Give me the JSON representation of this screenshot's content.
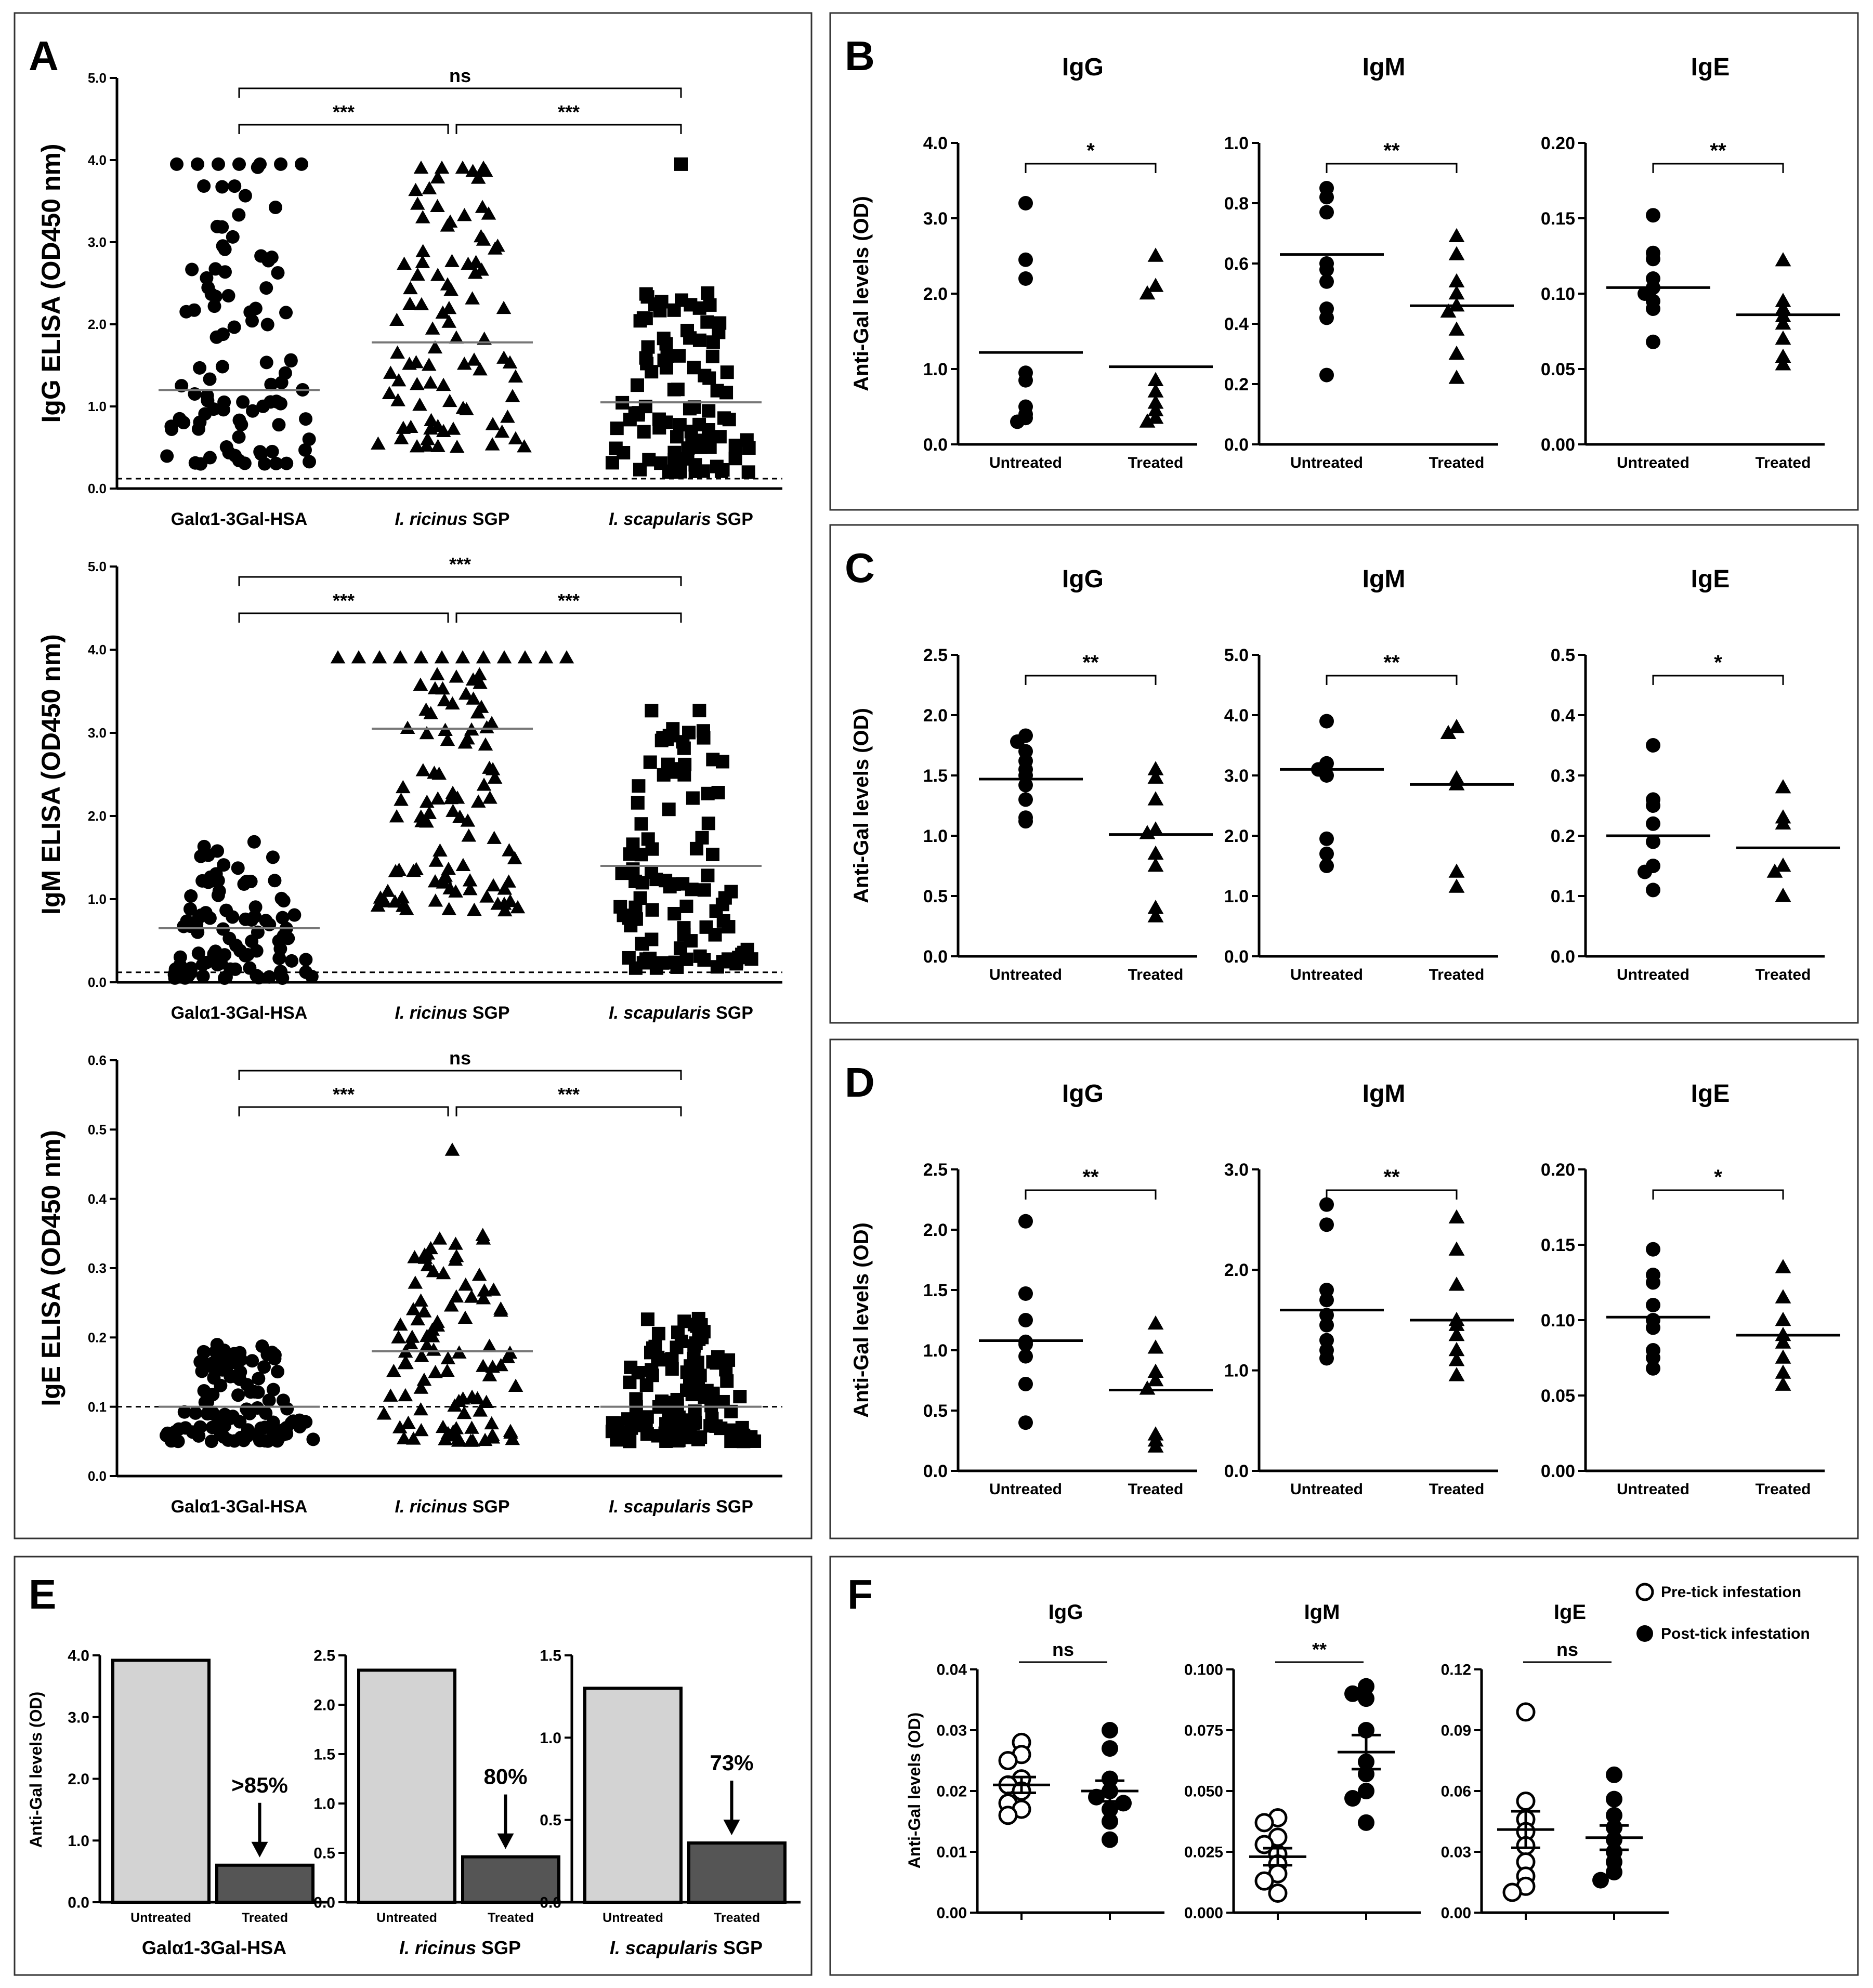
{
  "chart_data": {
    "A": {
      "letter": "A",
      "categories": [
        "Galα1-3Gal-HSA",
        "I. ricinus SGP",
        "I. scapularis SGP"
      ],
      "plots": [
        {
          "ylabel": "IgG ELISA (OD450 nm)",
          "yticks": [
            "0.0",
            "1.0",
            "2.0",
            "3.0",
            "4.0",
            "5.0"
          ],
          "ylim": [
            0,
            5
          ],
          "means": [
            1.2,
            1.78,
            1.05
          ],
          "cutoff": 0.12,
          "comparisons": [
            {
              "groups": [
                0,
                2
              ],
              "label": "ns"
            },
            {
              "groups": [
                0,
                1
              ],
              "label": "***"
            },
            {
              "groups": [
                1,
                2
              ],
              "label": "***"
            }
          ],
          "ranges": [
            [
              0.3,
              3.95,
              90
            ],
            [
              0.5,
              3.9,
              85
            ],
            [
              0.2,
              2.45,
              95
            ]
          ],
          "extras": [
            [
              3.95,
              3.95,
              3.95,
              3.95,
              3.95,
              3.95,
              3.95
            ],
            [
              3.9,
              3.9,
              3.9,
              3.9
            ],
            [
              3.95
            ]
          ]
        },
        {
          "ylabel": "IgM ELISA (OD450 nm)",
          "yticks": [
            "0.0",
            "1.0",
            "2.0",
            "3.0",
            "4.0",
            "5.0"
          ],
          "ylim": [
            0,
            5
          ],
          "means": [
            0.65,
            3.05,
            1.4
          ],
          "cutoff": 0.12,
          "comparisons": [
            {
              "groups": [
                0,
                2
              ],
              "label": "***"
            },
            {
              "groups": [
                0,
                1
              ],
              "label": "***"
            },
            {
              "groups": [
                1,
                2
              ],
              "label": "***"
            }
          ],
          "ranges": [
            [
              0.05,
              1.7,
              95
            ],
            [
              0.85,
              3.9,
              90
            ],
            [
              0.15,
              3.3,
              100
            ]
          ],
          "extras": [
            [],
            [
              3.9,
              3.9,
              3.9,
              3.9,
              3.9,
              3.9,
              3.9,
              3.9,
              3.9,
              3.9,
              3.9,
              3.9
            ],
            []
          ]
        },
        {
          "ylabel": "IgE ELISA (OD450 nm)",
          "yticks": [
            "0.0",
            "0.1",
            "0.2",
            "0.3",
            "0.4",
            "0.5",
            "0.6"
          ],
          "ylim": [
            0,
            0.6
          ],
          "means": [
            0.1,
            0.18,
            0.1
          ],
          "cutoff": 0.1,
          "comparisons": [
            {
              "groups": [
                0,
                2
              ],
              "label": "ns"
            },
            {
              "groups": [
                0,
                1
              ],
              "label": "***"
            },
            {
              "groups": [
                1,
                2
              ],
              "label": "***"
            }
          ],
          "ranges": [
            [
              0.05,
              0.19,
              110
            ],
            [
              0.05,
              0.35,
              95
            ],
            [
              0.05,
              0.23,
              110
            ]
          ],
          "extras": [
            [],
            [
              0.47
            ],
            []
          ]
        }
      ]
    },
    "rows": [
      {
        "letter": "B",
        "ylabel": "Anti-Gal levels (OD)",
        "groups": [
          "Untreated",
          "Treated"
        ],
        "subplots": [
          {
            "title": "IgG",
            "yticks": [
              "0.0",
              "1.0",
              "2.0",
              "3.0",
              "4.0"
            ],
            "ylim": [
              0,
              4
            ],
            "sig": "*",
            "untreated": [
              3.2,
              2.45,
              2.2,
              0.95,
              0.85,
              0.5,
              0.4,
              0.35,
              0.3
            ],
            "treated": [
              2.5,
              2.1,
              2.0,
              0.85,
              0.7,
              0.55,
              0.45,
              0.35,
              0.3
            ],
            "means": [
              1.22,
              1.03
            ]
          },
          {
            "title": "IgM",
            "yticks": [
              "0.0",
              "0.2",
              "0.4",
              "0.6",
              "0.8",
              "1.0"
            ],
            "ylim": [
              0,
              1
            ],
            "sig": "**",
            "untreated": [
              0.85,
              0.82,
              0.77,
              0.6,
              0.58,
              0.54,
              0.45,
              0.42,
              0.23
            ],
            "treated": [
              0.69,
              0.63,
              0.54,
              0.5,
              0.46,
              0.44,
              0.38,
              0.3,
              0.22
            ],
            "means": [
              0.63,
              0.46
            ]
          },
          {
            "title": "IgE",
            "yticks": [
              "0.00",
              "0.05",
              "0.10",
              "0.15",
              "0.20"
            ],
            "ylim": [
              0,
              0.2
            ],
            "sig": "**",
            "untreated": [
              0.152,
              0.127,
              0.123,
              0.11,
              0.104,
              0.1,
              0.095,
              0.09,
              0.068
            ],
            "treated": [
              0.122,
              0.095,
              0.09,
              0.085,
              0.08,
              0.07,
              0.058,
              0.053
            ],
            "means": [
              0.104,
              0.086
            ]
          }
        ]
      },
      {
        "letter": "C",
        "ylabel": "Anti-Gal levels (OD)",
        "groups": [
          "Untreated",
          "Treated"
        ],
        "subplots": [
          {
            "title": "IgG",
            "yticks": [
              "0.0",
              "0.5",
              "1.0",
              "1.5",
              "2.0",
              "2.5"
            ],
            "ylim": [
              0,
              2.5
            ],
            "sig": "**",
            "untreated": [
              1.83,
              1.78,
              1.7,
              1.62,
              1.55,
              1.5,
              1.42,
              1.3,
              1.15,
              1.12
            ],
            "treated": [
              1.55,
              1.48,
              1.3,
              1.05,
              1.02,
              0.85,
              0.75,
              0.4,
              0.33
            ],
            "means": [
              1.47,
              1.01
            ]
          },
          {
            "title": "IgM",
            "yticks": [
              "0.0",
              "1.0",
              "2.0",
              "3.0",
              "4.0",
              "5.0"
            ],
            "ylim": [
              0,
              5
            ],
            "sig": "**",
            "untreated": [
              3.9,
              3.2,
              3.1,
              3.0,
              1.95,
              1.7,
              1.5
            ],
            "treated": [
              3.8,
              3.7,
              2.95,
              2.85,
              1.4,
              1.15
            ],
            "means": [
              3.1,
              2.85
            ]
          },
          {
            "title": "IgE",
            "yticks": [
              "0.0",
              "0.1",
              "0.2",
              "0.3",
              "0.4",
              "0.5"
            ],
            "ylim": [
              0,
              0.5
            ],
            "sig": "*",
            "untreated": [
              0.35,
              0.26,
              0.25,
              0.22,
              0.19,
              0.15,
              0.14,
              0.11
            ],
            "treated": [
              0.28,
              0.23,
              0.22,
              0.15,
              0.14,
              0.1
            ],
            "means": [
              0.2,
              0.18
            ]
          }
        ]
      },
      {
        "letter": "D",
        "ylabel": "Anti-Gal levels (OD)",
        "groups": [
          "Untreated",
          "Treated"
        ],
        "subplots": [
          {
            "title": "IgG",
            "yticks": [
              "0.0",
              "0.5",
              "1.0",
              "1.5",
              "2.0",
              "2.5"
            ],
            "ylim": [
              0,
              2.5
            ],
            "sig": "**",
            "untreated": [
              2.07,
              1.47,
              1.25,
              1.07,
              1.05,
              0.95,
              0.72,
              0.4
            ],
            "treated": [
              1.22,
              1.02,
              0.82,
              0.75,
              0.68,
              0.3,
              0.25,
              0.2
            ],
            "means": [
              1.08,
              0.67
            ]
          },
          {
            "title": "IgM",
            "yticks": [
              "0.0",
              "1.0",
              "2.0",
              "3.0"
            ],
            "ylim": [
              0,
              3
            ],
            "sig": "**",
            "untreated": [
              2.65,
              2.45,
              1.8,
              1.7,
              1.55,
              1.45,
              1.3,
              1.2,
              1.12
            ],
            "treated": [
              2.52,
              2.2,
              1.85,
              1.5,
              1.45,
              1.35,
              1.2,
              1.1,
              0.95
            ],
            "means": [
              1.6,
              1.5
            ]
          },
          {
            "title": "IgE",
            "yticks": [
              "0.00",
              "0.05",
              "0.10",
              "0.15",
              "0.20"
            ],
            "ylim": [
              0,
              0.2
            ],
            "sig": "*",
            "untreated": [
              0.147,
              0.13,
              0.125,
              0.11,
              0.1,
              0.095,
              0.08,
              0.075,
              0.068
            ],
            "treated": [
              0.135,
              0.115,
              0.1,
              0.09,
              0.085,
              0.075,
              0.065,
              0.057
            ],
            "means": [
              0.102,
              0.09
            ]
          }
        ]
      }
    ],
    "E": {
      "letter": "E",
      "ylabel": "Anti-Gal levels (OD)",
      "groups": [
        "Untreated",
        "Treated"
      ],
      "subplots": [
        {
          "title": "Galα1-3Gal-HSA",
          "yticks": [
            "0.0",
            "1.0",
            "2.0",
            "3.0",
            "4.0"
          ],
          "ylim": [
            0,
            4
          ],
          "values": [
            3.92,
            0.6
          ],
          "reduction": ">85%"
        },
        {
          "title": "I. ricinus SGP",
          "yticks": [
            "0.0",
            "0.5",
            "1.0",
            "1.5",
            "2.0",
            "2.5"
          ],
          "ylim": [
            0,
            2.5
          ],
          "values": [
            2.35,
            0.46
          ],
          "reduction": "80%"
        },
        {
          "title": "I. scapularis SGP",
          "yticks": [
            "0.0",
            "0.5",
            "1.0",
            "1.5"
          ],
          "ylim": [
            0,
            1.5
          ],
          "values": [
            1.3,
            0.36
          ],
          "reduction": "73%"
        }
      ],
      "colors": {
        "untreated": "#d3d3d3",
        "treated": "#555555"
      }
    },
    "F": {
      "letter": "F",
      "ylabel": "Anti-Gal levels (OD)",
      "legend": [
        "Pre-tick infestation",
        "Post-tick infestation"
      ],
      "subplots": [
        {
          "title": "IgG",
          "yticks": [
            "0.00",
            "0.01",
            "0.02",
            "0.03",
            "0.04"
          ],
          "ylim": [
            0,
            0.04
          ],
          "sig": "ns",
          "pre": [
            0.028,
            0.026,
            0.025,
            0.022,
            0.021,
            0.02,
            0.018,
            0.017,
            0.016
          ],
          "post": [
            0.03,
            0.027,
            0.022,
            0.02,
            0.019,
            0.018,
            0.017,
            0.015,
            0.012
          ],
          "mean": [
            0.021,
            0.02
          ],
          "sem": [
            0.0013,
            0.0017
          ]
        },
        {
          "title": "IgM",
          "yticks": [
            "0.000",
            "0.025",
            "0.050",
            "0.075",
            "0.100"
          ],
          "ylim": [
            0,
            0.1
          ],
          "sig": "**",
          "pre": [
            0.039,
            0.037,
            0.031,
            0.028,
            0.024,
            0.02,
            0.016,
            0.013,
            0.008
          ],
          "post": [
            0.093,
            0.09,
            0.088,
            0.075,
            0.062,
            0.057,
            0.05,
            0.047,
            0.037
          ],
          "mean": [
            0.023,
            0.066
          ],
          "sem": [
            0.0035,
            0.007
          ]
        },
        {
          "title": "IgE",
          "yticks": [
            "0.00",
            "0.03",
            "0.06",
            "0.09",
            "0.12"
          ],
          "ylim": [
            0,
            0.12
          ],
          "sig": "ns",
          "pre": [
            0.099,
            0.055,
            0.046,
            0.04,
            0.033,
            0.025,
            0.018,
            0.013,
            0.01
          ],
          "post": [
            0.068,
            0.056,
            0.048,
            0.042,
            0.036,
            0.03,
            0.025,
            0.02,
            0.016
          ],
          "mean": [
            0.041,
            0.037
          ],
          "sem": [
            0.009,
            0.006
          ]
        }
      ]
    }
  }
}
